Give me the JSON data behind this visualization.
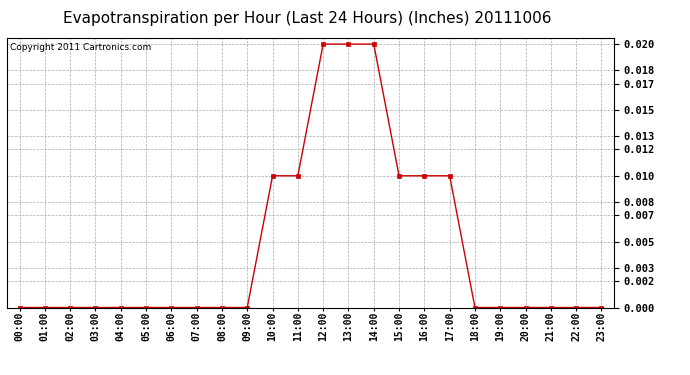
{
  "title": "Evapotranspiration per Hour (Last 24 Hours) (Inches) 20111006",
  "copyright": "Copyright 2011 Cartronics.com",
  "x_labels": [
    "00:00",
    "01:00",
    "02:00",
    "03:00",
    "04:00",
    "05:00",
    "06:00",
    "07:00",
    "08:00",
    "09:00",
    "10:00",
    "11:00",
    "12:00",
    "13:00",
    "14:00",
    "15:00",
    "16:00",
    "17:00",
    "18:00",
    "19:00",
    "20:00",
    "21:00",
    "22:00",
    "23:00"
  ],
  "y_values": [
    0.0,
    0.0,
    0.0,
    0.0,
    0.0,
    0.0,
    0.0,
    0.0,
    0.0,
    0.0,
    0.01,
    0.01,
    0.02,
    0.02,
    0.02,
    0.01,
    0.01,
    0.01,
    0.0,
    0.0,
    0.0,
    0.0,
    0.0,
    0.0
  ],
  "line_color": "#cc0000",
  "marker_color": "#cc0000",
  "bg_color": "#ffffff",
  "plot_bg_color": "#ffffff",
  "grid_color": "#aaaaaa",
  "title_fontsize": 11,
  "copyright_fontsize": 6.5,
  "ylim": [
    0.0,
    0.0205
  ],
  "yticks": [
    0.0,
    0.002,
    0.003,
    0.005,
    0.007,
    0.008,
    0.01,
    0.012,
    0.013,
    0.015,
    0.017,
    0.018,
    0.02
  ],
  "tick_fontsize": 7.5,
  "xlabel_fontsize": 7.0
}
